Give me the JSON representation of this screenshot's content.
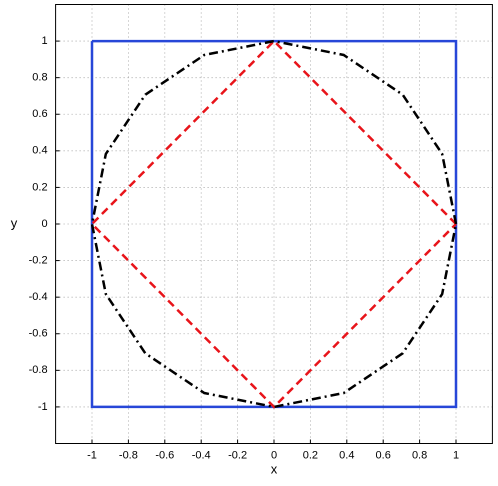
{
  "chart_data": {
    "type": "line",
    "x_label": "x",
    "y_label": "y",
    "xlim": [
      -1.2,
      1.2
    ],
    "ylim": [
      -1.2,
      1.2
    ],
    "xticks": [
      -1,
      -0.8,
      -0.6,
      -0.4,
      -0.2,
      0,
      0.2,
      0.4,
      0.6,
      0.8,
      1
    ],
    "yticks": [
      -1,
      -0.8,
      -0.6,
      -0.4,
      -0.2,
      0,
      0.2,
      0.4,
      0.6,
      0.8,
      1
    ],
    "grid": true,
    "series": [
      {
        "color": "#2747d8",
        "dash": "solid",
        "x": [
          -1,
          1,
          1,
          -1,
          -1
        ],
        "values": [
          1,
          1,
          -1,
          -1,
          1
        ]
      },
      {
        "color": "#e8141a",
        "dash": "dashed",
        "x": [
          1,
          0,
          -1,
          0,
          1
        ],
        "values": [
          0,
          1,
          0,
          -1,
          0
        ]
      },
      {
        "color": "#000000",
        "dash": "dashdot",
        "x": [
          1,
          0.924,
          0.707,
          0.383,
          0,
          -0.383,
          -0.707,
          -0.924,
          -1,
          -0.924,
          -0.707,
          -0.383,
          0,
          0.383,
          0.707,
          0.924,
          1
        ],
        "values": [
          0,
          0.383,
          0.707,
          0.924,
          1,
          0.924,
          0.707,
          0.383,
          0,
          -0.383,
          -0.707,
          -0.924,
          -1,
          -0.924,
          -0.707,
          -0.383,
          0
        ]
      }
    ]
  }
}
